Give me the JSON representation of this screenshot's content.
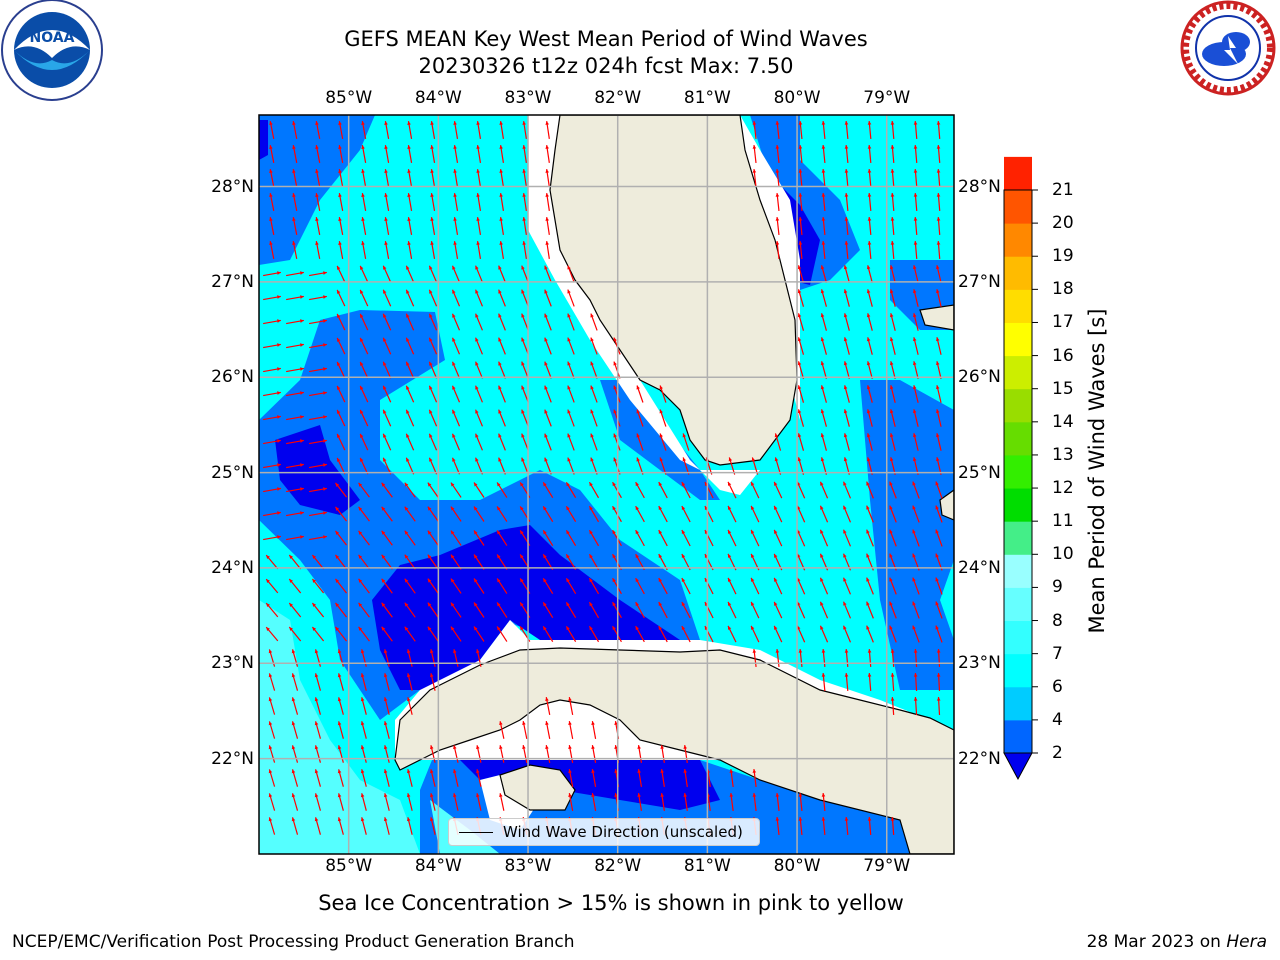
{
  "title": {
    "line1": "GEFS MEAN Key West Mean Period of Wind Waves",
    "line2": "20230326 t12z 024h fcst   Max: 7.50"
  },
  "axes": {
    "lon_ticks": [
      "85°W",
      "84°W",
      "83°W",
      "82°W",
      "81°W",
      "80°W",
      "79°W"
    ],
    "lat_ticks": [
      "28°N",
      "27°N",
      "26°N",
      "25°N",
      "24°N",
      "23°N",
      "22°N"
    ],
    "lon_values": [
      -85,
      -84,
      -83,
      -82,
      -81,
      -80,
      -79
    ],
    "lat_values": [
      28,
      27,
      26,
      25,
      24,
      23,
      22
    ],
    "lon_range": [
      -86.0,
      -78.25
    ],
    "lat_range": [
      21.0,
      28.75
    ],
    "grid": true
  },
  "colorbar": {
    "title": "Mean Period of Wind Waves [s]",
    "ticks": [
      "2",
      "4",
      "6",
      "7",
      "8",
      "9",
      "10",
      "11",
      "12",
      "13",
      "14",
      "15",
      "16",
      "17",
      "18",
      "19",
      "20",
      "21"
    ],
    "colors": [
      "#0066ff",
      "#00ccff",
      "#00ffff",
      "#33ffff",
      "#66ffff",
      "#99ffff",
      "#44ee88",
      "#00dd00",
      "#33ee00",
      "#66dd00",
      "#99dd00",
      "#ccee00",
      "#ffff00",
      "#ffdd00",
      "#ffbb00",
      "#ff8800",
      "#ff5500",
      "#ff2200"
    ],
    "underflow_color": "#0000ee",
    "range": [
      2,
      21
    ]
  },
  "legend": {
    "label": "Wind Wave Direction (unscaled)"
  },
  "colors": {
    "land": "#eeecdc",
    "dark_blue": "#0000ee",
    "mid_blue": "#0077ff",
    "cyan": "#00ffff",
    "light_cyan": "#55ffff",
    "arrow": "#ff0000",
    "grid": "#b0b0b0"
  },
  "notes": {
    "ice": "Sea Ice Concentration > 15% is shown in pink to yellow"
  },
  "footer": {
    "left": "NCEP/EMC/Verification Post Processing Product Generation Branch",
    "date": "28 Mar 2023 on ",
    "machine": "Hera"
  },
  "logos": {
    "left": "noaa-logo",
    "right": "nws-logo"
  }
}
